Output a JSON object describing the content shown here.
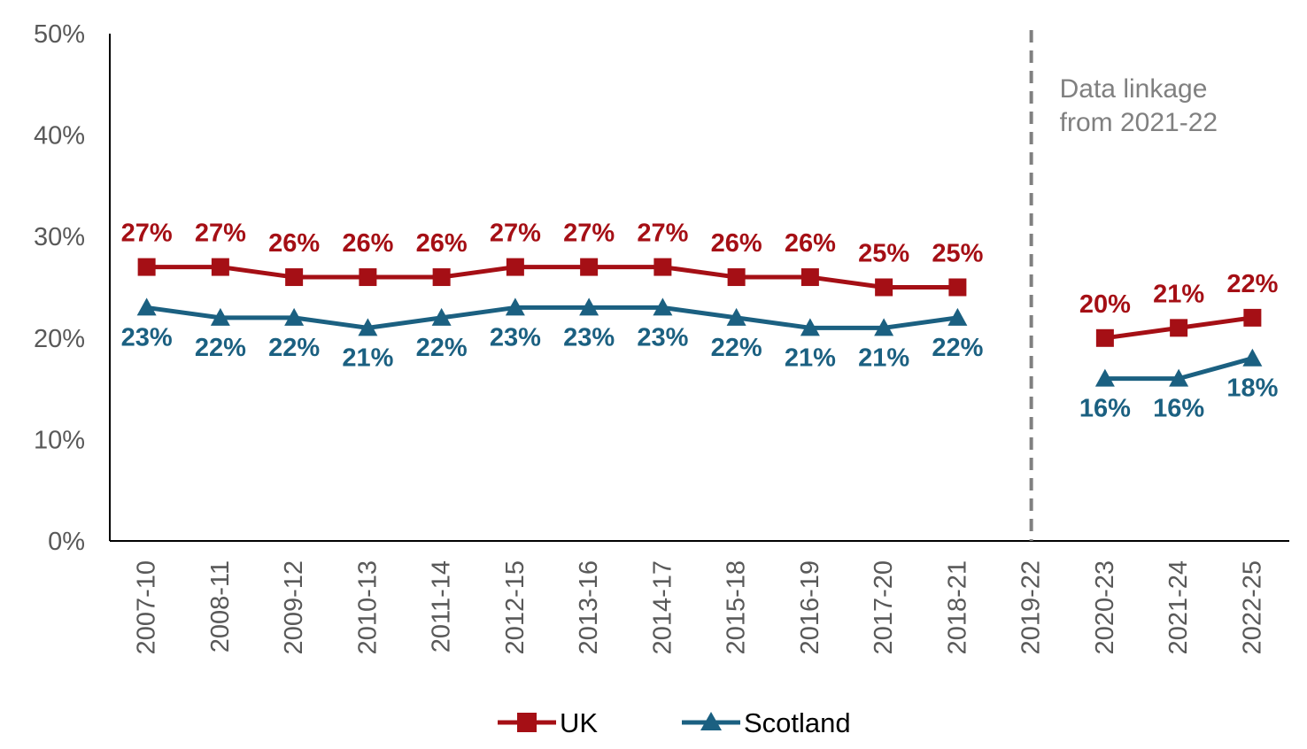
{
  "chart_data": {
    "type": "line",
    "title": "",
    "xlabel": "",
    "ylabel": "",
    "categories": [
      "2007-10",
      "2008-11",
      "2009-12",
      "2010-13",
      "2011-14",
      "2012-15",
      "2013-16",
      "2014-17",
      "2015-18",
      "2016-19",
      "2017-20",
      "2018-21",
      "2019-22",
      "2020-23",
      "2021-24",
      "2022-25"
    ],
    "ylim": [
      0,
      50
    ],
    "yticks": [
      0,
      10,
      20,
      30,
      40,
      50
    ],
    "ytick_labels": [
      "0%",
      "10%",
      "20%",
      "30%",
      "40%",
      "50%"
    ],
    "grid": false,
    "legend_position": "bottom",
    "series": [
      {
        "name": "UK",
        "color": "#A50F15",
        "marker": "square",
        "label_position": "above",
        "values": [
          27,
          27,
          26,
          26,
          26,
          27,
          27,
          27,
          26,
          26,
          25,
          25,
          null,
          20,
          21,
          22
        ],
        "labels": [
          "27%",
          "27%",
          "26%",
          "26%",
          "26%",
          "27%",
          "27%",
          "27%",
          "26%",
          "26%",
          "25%",
          "25%",
          null,
          "20%",
          "21%",
          "22%"
        ]
      },
      {
        "name": "Scotland",
        "color": "#1B6081",
        "marker": "triangle",
        "label_position": "below",
        "values": [
          23,
          22,
          22,
          21,
          22,
          23,
          23,
          23,
          22,
          21,
          21,
          22,
          null,
          16,
          16,
          18
        ],
        "labels": [
          "23%",
          "22%",
          "22%",
          "21%",
          "22%",
          "23%",
          "23%",
          "23%",
          "22%",
          "21%",
          "21%",
          "22%",
          null,
          "16%",
          "16%",
          "18%"
        ]
      }
    ],
    "annotations": [
      {
        "type": "vertical-dashed-line",
        "at_category": "2019-22",
        "color": "#808080",
        "text_lines": [
          "Data linkage",
          "from 2021-22"
        ]
      }
    ]
  }
}
